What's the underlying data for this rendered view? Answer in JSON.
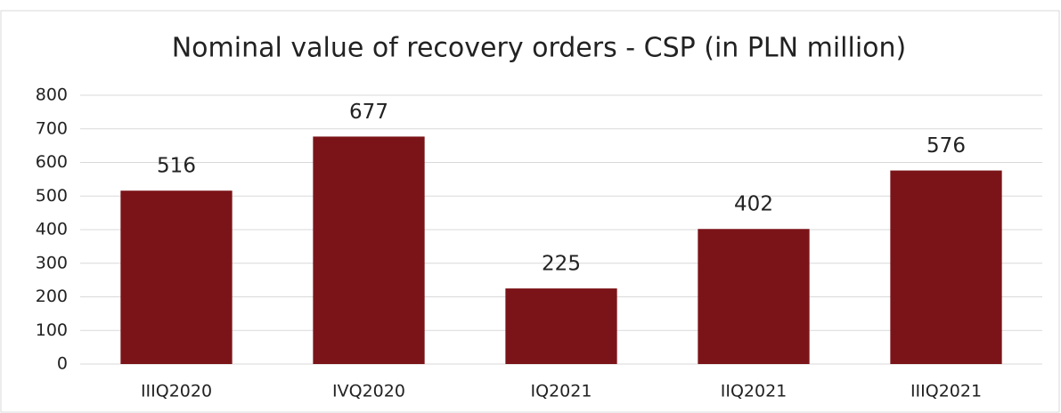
{
  "chart_data": {
    "type": "bar",
    "title": "Nominal value of recovery orders - CSP (in PLN million)",
    "categories": [
      "IIIQ2020",
      "IVQ2020",
      "IQ2021",
      "IIQ2021",
      "IIIQ2021"
    ],
    "values": [
      516,
      677,
      225,
      402,
      576
    ],
    "color": "#7b1418",
    "ylim": [
      0,
      800
    ],
    "yticks": [
      0,
      100,
      200,
      300,
      400,
      500,
      600,
      700,
      800
    ],
    "grid": true
  }
}
